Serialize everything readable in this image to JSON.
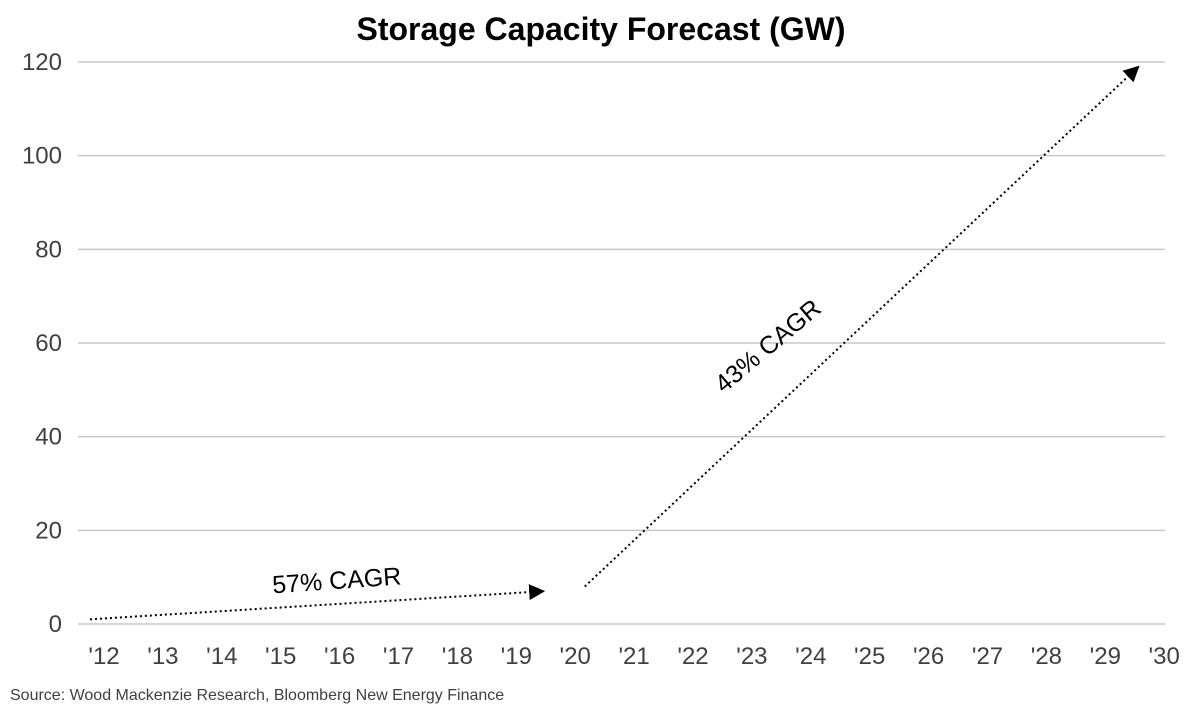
{
  "chart_data": {
    "type": "line",
    "title": "Storage Capacity Forecast (GW)",
    "xlabel": "",
    "ylabel": "",
    "ylim": [
      0,
      120
    ],
    "yticks": [
      0,
      20,
      40,
      60,
      80,
      100,
      120
    ],
    "categories": [
      "'12",
      "'13",
      "'14",
      "'15",
      "'16",
      "'17",
      "'18",
      "'19",
      "'20",
      "'21",
      "'22",
      "'23",
      "'24",
      "'25",
      "'26",
      "'27",
      "'28",
      "'29",
      "'30"
    ],
    "grid": true,
    "series": [
      {
        "name": "57% CAGR trend",
        "style": "dotted-arrow",
        "points": [
          {
            "x": 0,
            "y": 1
          },
          {
            "x": 7.7,
            "y": 7
          }
        ]
      },
      {
        "name": "43% CAGR trend",
        "style": "dotted-arrow",
        "points": [
          {
            "x": 8.4,
            "y": 8
          },
          {
            "x": 17.8,
            "y": 119
          }
        ]
      }
    ],
    "annotations": [
      {
        "text": "57% CAGR",
        "x": 4.2,
        "y": 7.5,
        "rotation": -4
      },
      {
        "text": "43% CAGR",
        "x": 11.6,
        "y": 58,
        "rotation": -40
      }
    ]
  },
  "source": "Source: Wood Mackenzie Research, Bloomberg New Energy Finance"
}
